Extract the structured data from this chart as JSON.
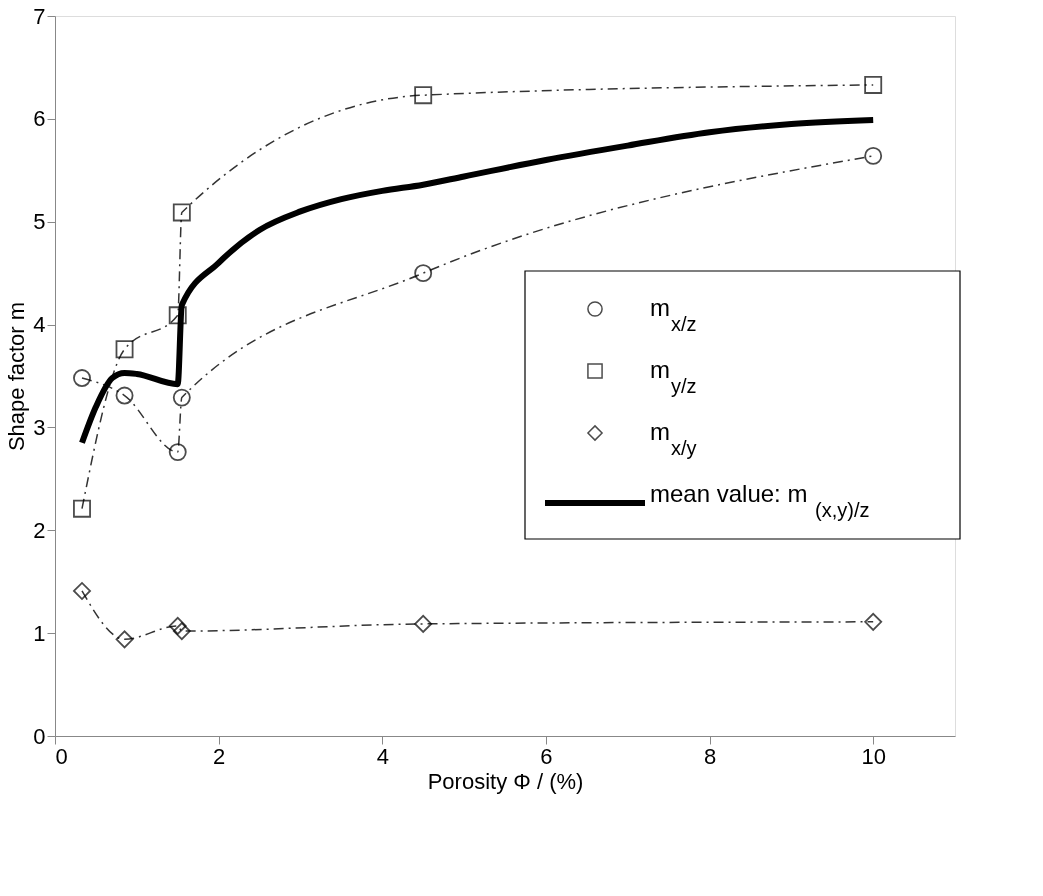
{
  "chart_data": {
    "type": "line",
    "xlabel": "Porosity  Φ / (%)",
    "ylabel": "Shape factor  m",
    "xlim": [
      0,
      11
    ],
    "ylim": [
      0,
      7
    ],
    "xticks": [
      0,
      2,
      4,
      6,
      8,
      10
    ],
    "yticks": [
      0,
      1,
      2,
      3,
      4,
      5,
      6,
      7
    ],
    "grid": false,
    "legend": "right",
    "series": [
      {
        "name": "m$_{x/z}$",
        "color": "#333333",
        "marker": "circle",
        "line_style": "dashed",
        "x": [
          0.33,
          0.85,
          1.5,
          1.55,
          4.5,
          10
        ],
        "values": [
          3.48,
          3.31,
          2.76,
          3.29,
          4.5,
          5.64
        ]
      },
      {
        "name": "m$_{y/z}$",
        "color": "#333333",
        "marker": "square",
        "line_style": "dashed",
        "x": [
          0.33,
          0.85,
          1.5,
          1.55,
          4.5,
          10
        ],
        "values": [
          2.21,
          3.76,
          4.09,
          5.09,
          6.23,
          6.33
        ]
      },
      {
        "name": "m$_{x/y}$",
        "color": "#333333",
        "marker": "diamond",
        "line_style": "dashed",
        "x": [
          0.33,
          0.85,
          1.5,
          1.55,
          4.5,
          10
        ],
        "values": [
          1.41,
          0.94,
          1.07,
          1.02,
          1.09,
          1.11
        ]
      },
      {
        "name": "mean value: m$_{(x,y)/z}$",
        "color": "#000000",
        "marker": "none",
        "line_style": "solid",
        "x": [
          0.33,
          0.5,
          0.7,
          0.85,
          1.0,
          1.5,
          1.55,
          2,
          2.5,
          3,
          3.5,
          4,
          4.5,
          5,
          6,
          7,
          8,
          9,
          10
        ],
        "values": [
          2.85,
          3.2,
          3.48,
          3.53,
          3.52,
          3.42,
          4.19,
          4.6,
          4.92,
          5.1,
          5.22,
          5.3,
          5.36,
          5.44,
          5.6,
          5.74,
          5.87,
          5.95,
          5.99
        ]
      }
    ]
  }
}
